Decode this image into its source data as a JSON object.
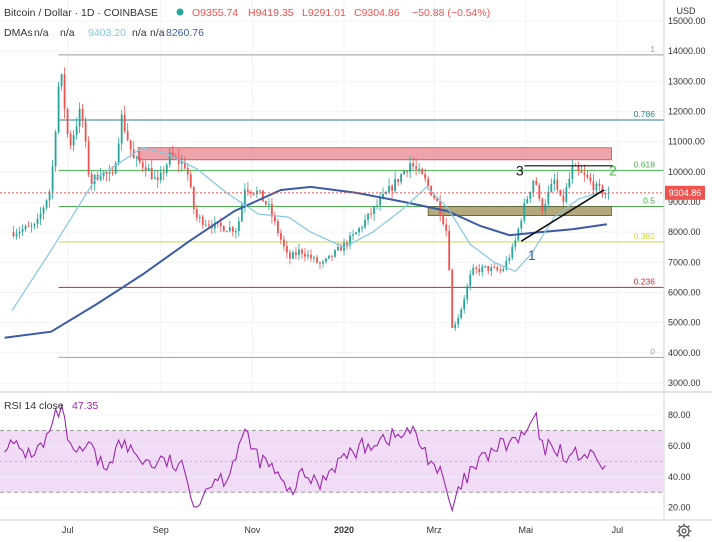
{
  "header": {
    "title": "Bitcoin / Dollar · 1D · COINBASE",
    "open": "O9355.74",
    "high": "H9419.35",
    "low": "L9291.01",
    "close": "C9304.86",
    "change": "−50.88 (−0.54%)",
    "indicator_label": "DMAs",
    "indicator_values": [
      "n/a",
      "n/a",
      "9403.20",
      "n/a",
      "n/a",
      "8260.76"
    ]
  },
  "currency": "USD",
  "last_price_label": "9304.86",
  "colors": {
    "up": "#26a69a",
    "down": "#ef5350",
    "dma_fast": "#85c7e3",
    "dma_slow": "#3b5ba5",
    "rsi_line": "#9c27b0",
    "rsi_band": "#f1dcf5",
    "resistance_zone": "#e8868d",
    "support_zone": "#a69a63",
    "last_price": "#ef5350"
  },
  "chart_data": [
    {
      "type": "candlestick",
      "ylim": [
        2700,
        15500
      ],
      "yticks": [
        3000,
        4000,
        5000,
        6000,
        7000,
        8000,
        9000,
        10000,
        11000,
        12000,
        13000,
        14000,
        15000
      ],
      "x_ticks": [
        "Jul",
        "Sep",
        "Nov",
        "2020",
        "Mrz",
        "Mai",
        "Jul"
      ],
      "price_path": [
        {
          "date": "2019-05-25",
          "price": 8000
        },
        {
          "date": "2019-06-10",
          "price": 8200
        },
        {
          "date": "2019-06-20",
          "price": 9500
        },
        {
          "date": "2019-06-26",
          "price": 13500
        },
        {
          "date": "2019-07-02",
          "price": 10800
        },
        {
          "date": "2019-07-10",
          "price": 12100
        },
        {
          "date": "2019-07-16",
          "price": 9600
        },
        {
          "date": "2019-07-23",
          "price": 10000
        },
        {
          "date": "2019-07-31",
          "price": 9800
        },
        {
          "date": "2019-08-06",
          "price": 11800
        },
        {
          "date": "2019-08-14",
          "price": 10400
        },
        {
          "date": "2019-08-22",
          "price": 10200
        },
        {
          "date": "2019-08-30",
          "price": 9600
        },
        {
          "date": "2019-09-07",
          "price": 10500
        },
        {
          "date": "2019-09-18",
          "price": 10200
        },
        {
          "date": "2019-09-24",
          "price": 8500
        },
        {
          "date": "2019-10-07",
          "price": 8200
        },
        {
          "date": "2019-10-22",
          "price": 8100
        },
        {
          "date": "2019-10-27",
          "price": 9500
        },
        {
          "date": "2019-11-05",
          "price": 9300
        },
        {
          "date": "2019-11-12",
          "price": 8800
        },
        {
          "date": "2019-11-25",
          "price": 7100
        },
        {
          "date": "2019-12-03",
          "price": 7400
        },
        {
          "date": "2019-12-17",
          "price": 6900
        },
        {
          "date": "2019-12-26",
          "price": 7300
        },
        {
          "date": "2020-01-08",
          "price": 7900
        },
        {
          "date": "2020-01-20",
          "price": 8700
        },
        {
          "date": "2020-02-05",
          "price": 9700
        },
        {
          "date": "2020-02-14",
          "price": 10300
        },
        {
          "date": "2020-02-24",
          "price": 9700
        },
        {
          "date": "2020-03-04",
          "price": 8900
        },
        {
          "date": "2020-03-10",
          "price": 7900
        },
        {
          "date": "2020-03-13",
          "price": 4800
        },
        {
          "date": "2020-03-18",
          "price": 5300
        },
        {
          "date": "2020-03-26",
          "price": 6700
        },
        {
          "date": "2020-04-04",
          "price": 6800
        },
        {
          "date": "2020-04-15",
          "price": 6700
        },
        {
          "date": "2020-04-23",
          "price": 7500
        },
        {
          "date": "2020-04-29",
          "price": 8700
        },
        {
          "date": "2020-05-07",
          "price": 9900
        },
        {
          "date": "2020-05-11",
          "price": 8700
        },
        {
          "date": "2020-05-20",
          "price": 9700
        },
        {
          "date": "2020-05-25",
          "price": 8900
        },
        {
          "date": "2020-06-01",
          "price": 10100
        },
        {
          "date": "2020-06-10",
          "price": 9800
        },
        {
          "date": "2020-06-18",
          "price": 9400
        },
        {
          "date": "2020-06-24",
          "price": 9305
        }
      ],
      "dma_fast_path": [
        {
          "date": "2019-05-25",
          "price": 5400
        },
        {
          "date": "2019-06-20",
          "price": 7400
        },
        {
          "date": "2019-07-20",
          "price": 9800
        },
        {
          "date": "2019-08-20",
          "price": 10800
        },
        {
          "date": "2019-09-05",
          "price": 10600
        },
        {
          "date": "2019-09-25",
          "price": 10100
        },
        {
          "date": "2019-10-15",
          "price": 9300
        },
        {
          "date": "2019-11-05",
          "price": 8600
        },
        {
          "date": "2019-11-25",
          "price": 8500
        },
        {
          "date": "2019-12-10",
          "price": 8000
        },
        {
          "date": "2020-01-01",
          "price": 7500
        },
        {
          "date": "2020-01-20",
          "price": 8000
        },
        {
          "date": "2020-02-10",
          "price": 8800
        },
        {
          "date": "2020-02-25",
          "price": 9500
        },
        {
          "date": "2020-03-10",
          "price": 8800
        },
        {
          "date": "2020-03-25",
          "price": 7600
        },
        {
          "date": "2020-04-10",
          "price": 7000
        },
        {
          "date": "2020-04-24",
          "price": 6700
        },
        {
          "date": "2020-05-05",
          "price": 7300
        },
        {
          "date": "2020-05-20",
          "price": 8500
        },
        {
          "date": "2020-06-05",
          "price": 9100
        },
        {
          "date": "2020-06-24",
          "price": 9403
        }
      ],
      "dma_slow_path": [
        {
          "date": "2019-05-20",
          "price": 4500
        },
        {
          "date": "2019-06-20",
          "price": 4700
        },
        {
          "date": "2019-07-20",
          "price": 5600
        },
        {
          "date": "2019-08-20",
          "price": 6600
        },
        {
          "date": "2019-09-20",
          "price": 7700
        },
        {
          "date": "2019-10-20",
          "price": 8700
        },
        {
          "date": "2019-11-20",
          "price": 9400
        },
        {
          "date": "2019-12-10",
          "price": 9500
        },
        {
          "date": "2020-01-10",
          "price": 9300
        },
        {
          "date": "2020-02-10",
          "price": 9000
        },
        {
          "date": "2020-03-10",
          "price": 8700
        },
        {
          "date": "2020-04-01",
          "price": 8200
        },
        {
          "date": "2020-04-20",
          "price": 7900
        },
        {
          "date": "2020-05-10",
          "price": 8000
        },
        {
          "date": "2020-06-01",
          "price": 8100
        },
        {
          "date": "2020-06-24",
          "price": 8260
        }
      ],
      "fib_levels": [
        {
          "label": "1",
          "price": 13880,
          "color": "#9e9e9e"
        },
        {
          "label": "0.786",
          "price": 11720,
          "color": "#26828e"
        },
        {
          "label": "0.618",
          "price": 10050,
          "color": "#4caf50"
        },
        {
          "label": "0.5",
          "price": 8850,
          "color": "#4caf50"
        },
        {
          "label": "0.382",
          "price": 7680,
          "color": "#cddc39"
        },
        {
          "label": "0.236",
          "price": 6170,
          "color": "#c62828"
        },
        {
          "label": "0",
          "price": 3850,
          "color": "#9e9e9e"
        }
      ],
      "zones": [
        {
          "from": "2019-08-17",
          "to": "2020-06-27",
          "low": 10400,
          "high": 10800,
          "kind": "resistance"
        },
        {
          "from": "2020-02-26",
          "to": "2020-06-27",
          "low": 8550,
          "high": 8850,
          "kind": "support"
        }
      ],
      "last_price": 9304.86,
      "annotations": [
        {
          "label": "1",
          "date": "2020-05-05",
          "price": 7250
        },
        {
          "label": "2",
          "date": "2020-06-28",
          "price": 10050
        },
        {
          "label": "3",
          "date": "2020-04-27",
          "price": 10050
        }
      ],
      "trendline": {
        "from": {
          "date": "2020-04-28",
          "price": 7700
        },
        "to": {
          "date": "2020-06-22",
          "price": 9400
        }
      },
      "channel_top": {
        "from": {
          "date": "2020-04-30",
          "price": 10200
        },
        "to": {
          "date": "2020-06-28",
          "price": 10200
        }
      }
    },
    {
      "type": "line",
      "title": "RSI 14 close",
      "value_label": "47.35",
      "ylim": [
        12,
        95
      ],
      "yticks": [
        20,
        40,
        60,
        80
      ],
      "band": [
        30,
        70
      ],
      "midline": 50,
      "series": [
        {
          "x": [
            "2019-05-20",
            "2019-06-05",
            "2019-06-15",
            "2019-06-26",
            "2019-07-05",
            "2019-07-15",
            "2019-07-25",
            "2019-08-05",
            "2019-08-15",
            "2019-08-25",
            "2019-09-05",
            "2019-09-15",
            "2019-09-25",
            "2019-10-05",
            "2019-10-15",
            "2019-10-26",
            "2019-11-05",
            "2019-11-15",
            "2019-11-25",
            "2019-12-05",
            "2019-12-15",
            "2019-12-25",
            "2020-01-05",
            "2020-01-15",
            "2020-01-25",
            "2020-02-05",
            "2020-02-15",
            "2020-02-25",
            "2020-03-05",
            "2020-03-13",
            "2020-03-20",
            "2020-03-30",
            "2020-04-10",
            "2020-04-20",
            "2020-04-30",
            "2020-05-07",
            "2020-05-12",
            "2020-05-20",
            "2020-05-30",
            "2020-06-08",
            "2020-06-16",
            "2020-06-24"
          ],
          "values": [
            62,
            55,
            60,
            85,
            52,
            60,
            45,
            62,
            55,
            48,
            50,
            45,
            22,
            38,
            40,
            68,
            52,
            45,
            28,
            42,
            35,
            48,
            55,
            60,
            65,
            66,
            70,
            55,
            42,
            18,
            36,
            48,
            58,
            62,
            66,
            80,
            58,
            60,
            52,
            56,
            50,
            47.35
          ]
        }
      ]
    }
  ]
}
